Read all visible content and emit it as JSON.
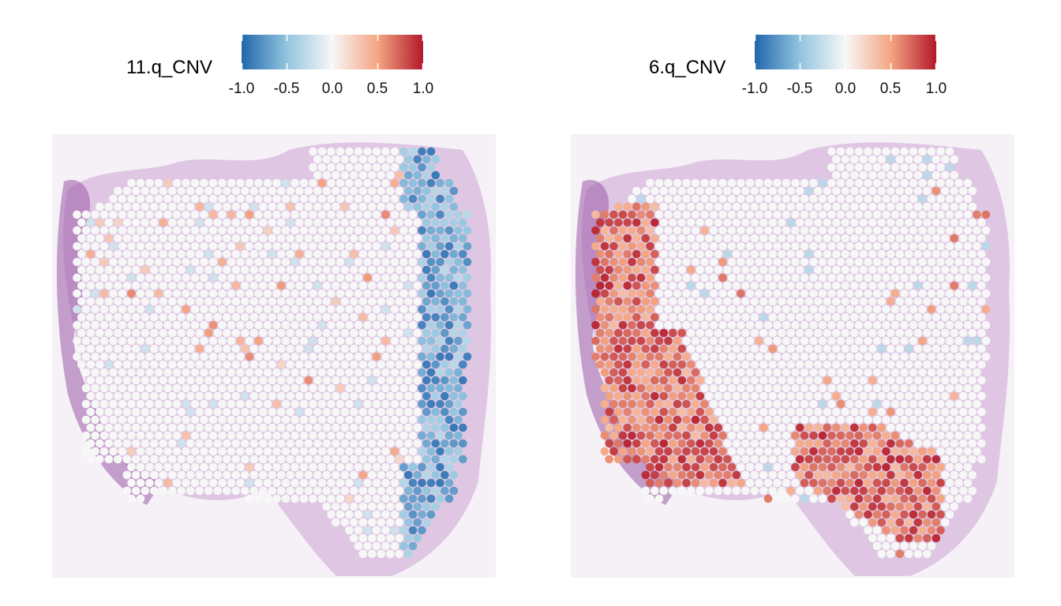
{
  "chart_data": [
    {
      "type": "heatmap",
      "subtype": "spatial-spot-map",
      "legend_title": "11.q_CNV",
      "colorbar": {
        "ticks": [
          "-1.0",
          "-0.5",
          "0.0",
          "0.5",
          "1.0"
        ],
        "range": [
          -1.0,
          1.0
        ],
        "colors": [
          "#2166ac",
          "#92c5de",
          "#f7f7f7",
          "#f4a582",
          "#b2182b"
        ]
      },
      "spots_present_region": "tissue section",
      "pattern": "negative (blue) values concentrated along right edge of tissue; scattered mild positive (orange) spots center-left"
    },
    {
      "type": "heatmap",
      "subtype": "spatial-spot-map",
      "legend_title": "6.q_CNV",
      "colorbar": {
        "ticks": [
          "-1.0",
          "-0.5",
          "0.0",
          "0.5",
          "1.0"
        ],
        "range": [
          -1.0,
          1.0
        ],
        "colors": [
          "#2166ac",
          "#92c5de",
          "#f7f7f7",
          "#f4a582",
          "#b2182b"
        ]
      },
      "spots_present_region": "tissue section",
      "pattern": "positive (orange/red) values along left edge and lower-center/bottom-right band; few mild blue spots center-right"
    }
  ]
}
